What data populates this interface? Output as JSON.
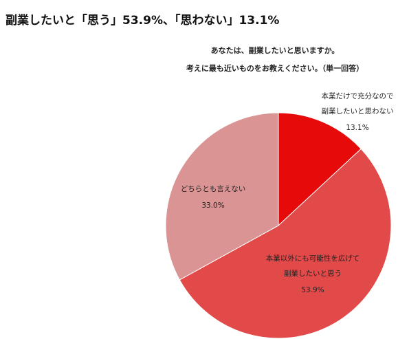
{
  "headline": "副業したいと「思う」53.9%、「思わない」13.1%",
  "chart_data": {
    "type": "pie",
    "title": [
      "あなたは、副業したいと思いますか。",
      "考えに最も近いものをお教えください。（単一回答）"
    ],
    "categories": [
      [
        "本業だけで充分なので",
        "副業したいと思わない"
      ],
      [
        "本業以外にも可能性を広げて",
        "副業したいと思う"
      ],
      [
        "どちらとも言えない"
      ]
    ],
    "values": [
      13.1,
      53.9,
      33.0
    ],
    "value_labels": [
      "13.1%",
      "53.9%",
      "33.0%"
    ],
    "colors": [
      "#e60a0a",
      "#e24a4a",
      "#da9494"
    ]
  }
}
